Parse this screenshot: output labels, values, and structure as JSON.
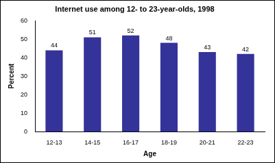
{
  "chart_data": {
    "type": "bar",
    "title": "Internet use among 12- to 23-year-olds, 1998",
    "x_label": "Age",
    "y_label": "Percent",
    "categories": [
      "12-13",
      "14-15",
      "16-17",
      "18-19",
      "20-21",
      "22-23"
    ],
    "values": [
      44,
      51,
      52,
      48,
      43,
      42
    ],
    "color": "#333399",
    "ylim": [
      0,
      60
    ],
    "yticks": [
      0,
      10,
      20,
      30,
      40,
      50,
      60
    ],
    "grid": false,
    "data_labels": true
  }
}
